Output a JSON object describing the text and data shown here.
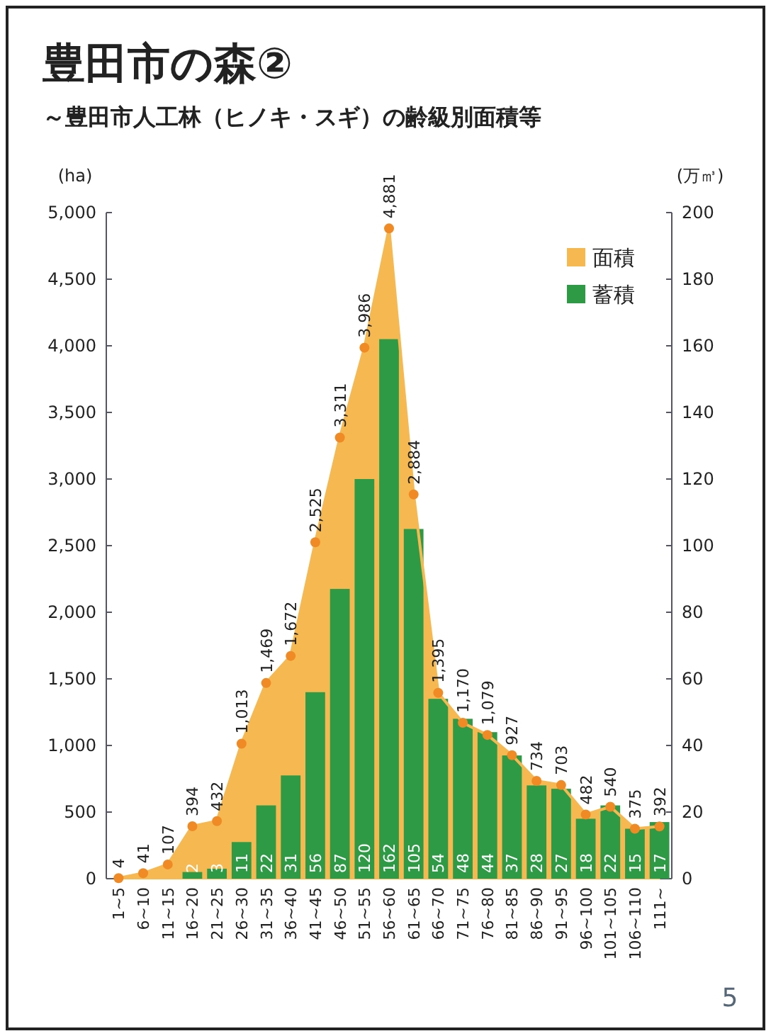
{
  "chart_data": {
    "type": "bar",
    "title": "豊田市の森②",
    "subtitle": "～豊田市人工林（ヒノキ・スギ）の齢級別面積等",
    "ylabel": "(ha)",
    "y2label": "(万㎥)",
    "categories": [
      "1~5",
      "6~10",
      "11~15",
      "16~20",
      "21~25",
      "26~30",
      "31~35",
      "36~40",
      "41~45",
      "46~50",
      "51~55",
      "56~60",
      "61~65",
      "66~70",
      "71~75",
      "76~80",
      "81~85",
      "86~90",
      "91~95",
      "96~100",
      "101~105",
      "106~110",
      "111~"
    ],
    "series": [
      {
        "name": "面積",
        "type": "area",
        "axis": "y",
        "color": "#f6b850",
        "values": [
          4,
          41,
          107,
          394,
          432,
          1013,
          1469,
          1672,
          2525,
          3311,
          3986,
          4881,
          2884,
          1395,
          1170,
          1079,
          927,
          734,
          703,
          482,
          540,
          375,
          392
        ],
        "value_labels": [
          "4",
          "41",
          "107",
          "394",
          "432",
          "1,013",
          "1,469",
          "1,672",
          "2,525",
          "3,311",
          "3,986",
          "4,881",
          "2,884",
          "1,395",
          "1,170",
          "1,079",
          "927",
          "734",
          "703",
          "482",
          "540",
          "375",
          "392"
        ]
      },
      {
        "name": "蓄積",
        "axis": "y2",
        "color": "#2e9a45",
        "values": [
          0,
          0,
          0,
          2,
          3,
          11,
          22,
          31,
          56,
          87,
          120,
          162,
          105,
          54,
          48,
          44,
          37,
          28,
          27,
          18,
          22,
          15,
          17
        ],
        "value_labels": [
          null,
          null,
          null,
          "2",
          "3",
          "11",
          "22",
          "31",
          "56",
          "87",
          "120",
          "162",
          "105",
          "54",
          "48",
          "44",
          "37",
          "28",
          "27",
          "18",
          "22",
          "15",
          "17"
        ]
      }
    ],
    "ylim": [
      0,
      5000
    ],
    "yticks": [
      0,
      500,
      {
        "value": 1000,
        "label": "1,000"
      },
      {
        "value": 1500,
        "label": "1,500"
      },
      {
        "value": 2000,
        "label": "2,000"
      },
      {
        "value": 2500,
        "label": "2,500"
      },
      {
        "value": 3000,
        "label": "3,000"
      },
      {
        "value": 3500,
        "label": "3,500"
      },
      {
        "value": 4000,
        "label": "4,000"
      },
      {
        "value": 4500,
        "label": "4,500"
      },
      {
        "value": 5000,
        "label": "5,000"
      }
    ],
    "y2lim": [
      0,
      200
    ],
    "y2ticks": [
      0,
      20,
      40,
      60,
      80,
      100,
      120,
      140,
      160,
      180,
      200
    ],
    "marker": "circle",
    "legend": "top right",
    "annotations": [
      "5"
    ]
  }
}
